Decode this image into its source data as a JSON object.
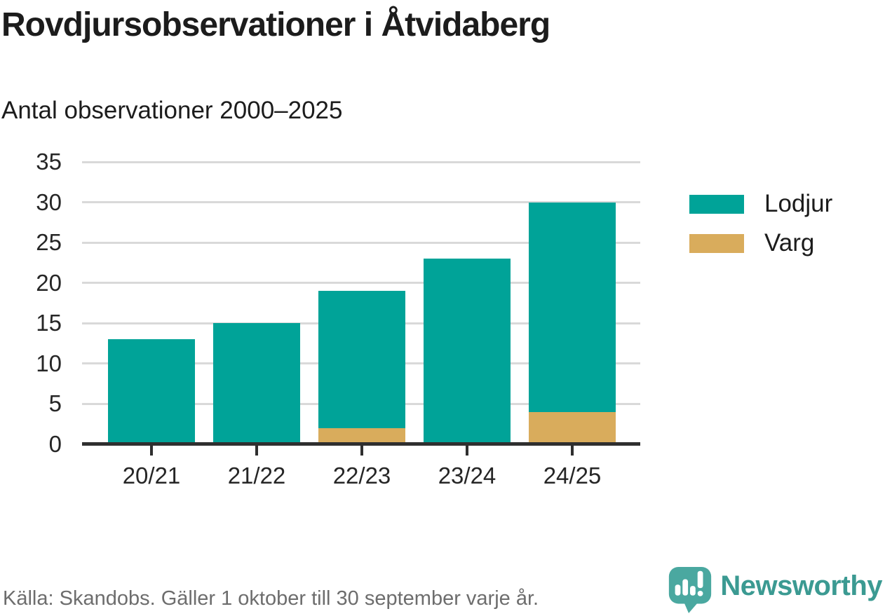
{
  "header": {
    "title": "Rovdjursobservationer i Åtvidaberg",
    "subtitle": "Antal observationer 2000–2025"
  },
  "chart_data": {
    "type": "bar",
    "stacked": true,
    "title": "Rovdjursobservationer i Åtvidaberg",
    "subtitle": "Antal observationer 2000–2025",
    "categories": [
      "20/21",
      "21/22",
      "22/23",
      "23/24",
      "24/25"
    ],
    "series": [
      {
        "name": "Lodjur",
        "color": "#00a398",
        "values": [
          13,
          15,
          17,
          23,
          26
        ]
      },
      {
        "name": "Varg",
        "color": "#d9ac5c",
        "values": [
          0,
          0,
          2,
          0,
          4
        ]
      }
    ],
    "stack_order": [
      "Varg",
      "Lodjur"
    ],
    "totals": [
      13,
      15,
      19,
      23,
      30
    ],
    "ylim": [
      0,
      35
    ],
    "y_ticks": [
      0,
      5,
      10,
      15,
      20,
      25,
      30,
      35
    ],
    "grid": true,
    "legend_position": "right"
  },
  "footer": {
    "source": "Källa: Skandobs. Gäller 1 oktober till 30 september varje år.",
    "brand": "Newsworthy"
  },
  "colors": {
    "lodjur": "#00a398",
    "varg": "#d9ac5c",
    "axis": "#2f2f2f",
    "gridline": "#d9d9d9",
    "text": "#1c1c1c",
    "footer_text": "#6d6d6d",
    "brand_teal": "#3b9a92",
    "logo_bubble": "#4aa8a0"
  }
}
